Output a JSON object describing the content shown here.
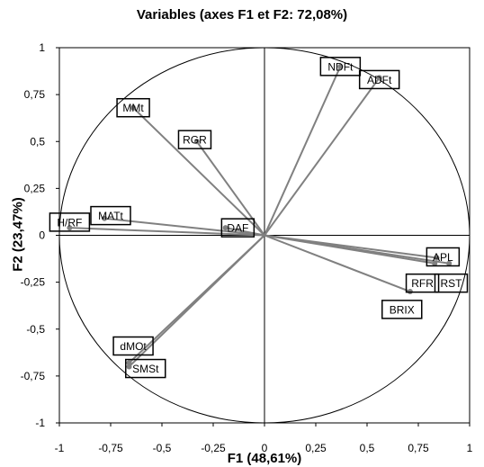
{
  "chart_data": {
    "type": "scatter",
    "title": "Variables (axes F1 et F2: 72,08%)",
    "xlabel": "F1 (48,61%)",
    "ylabel": "F2 (23,47%)",
    "xlim": [
      -1,
      1
    ],
    "ylim": [
      -1,
      1
    ],
    "x_ticks": [
      "-1",
      "-0,75",
      "-0,5",
      "-0,25",
      "0",
      "0,25",
      "0,5",
      "0,75",
      "1"
    ],
    "y_ticks": [
      "-1",
      "-0,75",
      "-0,5",
      "-0,25",
      "0",
      "0,25",
      "0,5",
      "0,75",
      "1"
    ],
    "grid": false,
    "correlation_circle": true,
    "series": [
      {
        "label": "NDFt",
        "x": 0.37,
        "y": 0.9
      },
      {
        "label": "ADFt",
        "x": 0.56,
        "y": 0.84
      },
      {
        "label": "MMt",
        "x": -0.64,
        "y": 0.68
      },
      {
        "label": "RGR",
        "x": -0.33,
        "y": 0.5
      },
      {
        "label": "H/RF",
        "x": -0.95,
        "y": 0.04
      },
      {
        "label": "MATt",
        "x": -0.78,
        "y": 0.09
      },
      {
        "label": "DAF",
        "x": -0.19,
        "y": 0.04
      },
      {
        "label": "APL",
        "x": 0.84,
        "y": -0.12
      },
      {
        "label": "RFR",
        "x": 0.83,
        "y": -0.15
      },
      {
        "label": "RST",
        "x": 0.9,
        "y": -0.15
      },
      {
        "label": "BRIX",
        "x": 0.71,
        "y": -0.3
      },
      {
        "label": "dMOt",
        "x": -0.66,
        "y": -0.68
      },
      {
        "label": "SMSt",
        "x": -0.66,
        "y": -0.7
      }
    ],
    "colors": {
      "vector": "#808080",
      "axis": "#000000",
      "circle": "#000000",
      "label_box": "#000000"
    }
  }
}
